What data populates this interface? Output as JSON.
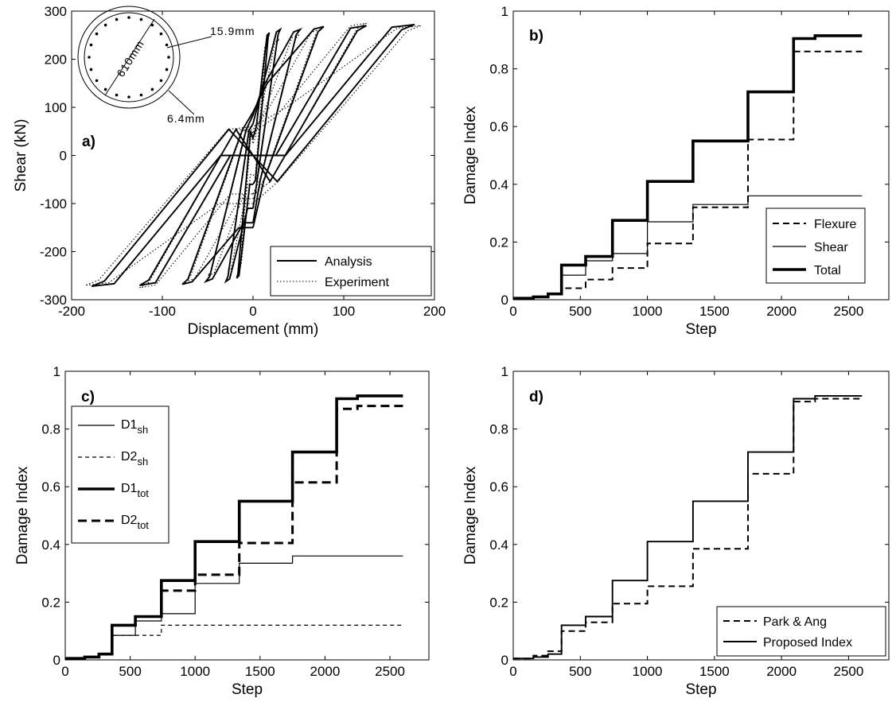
{
  "chart_data": [
    {
      "id": "a",
      "type": "line",
      "panel_label": "a)",
      "xlabel": "Displacement (mm)",
      "ylabel": "Shear (kN)",
      "xlim": [
        -200,
        200
      ],
      "ylim": [
        -300,
        300
      ],
      "xticks": [
        "-200",
        "-100",
        "0",
        "100",
        "200"
      ],
      "yticks": [
        "-300",
        "-200",
        "-100",
        "0",
        "100",
        "200",
        "300"
      ],
      "legend_position": "bottom-right",
      "annotations": {
        "diameter": "610mm",
        "long_bar": "15.9mm",
        "spiral": "6.4mm"
      },
      "series": [
        {
          "name": "Analysis",
          "style": "solid",
          "loops": [
            {
              "amp": 18,
              "vmax": 255,
              "vres": 60
            },
            {
              "amp": 30,
              "vmax": 262,
              "vres": 110
            },
            {
              "amp": 52,
              "vmax": 262,
              "vres": 140
            },
            {
              "amp": 78,
              "vmax": 268,
              "vres": 150
            },
            {
              "amp": 125,
              "vmax": 270,
              "vres": 0
            },
            {
              "amp": 178,
              "vmax": 272,
              "vres": 0
            }
          ]
        },
        {
          "name": "Experiment",
          "style": "dotted",
          "loops": [
            {
              "amp": 15,
              "vmax": 230,
              "vres": 40
            },
            {
              "amp": 28,
              "vmax": 240,
              "vres": 60
            },
            {
              "amp": 50,
              "vmax": 250,
              "vres": 80
            },
            {
              "amp": 75,
              "vmax": 262,
              "vres": 90
            },
            {
              "amp": 125,
              "vmax": 275,
              "vres": 80
            },
            {
              "amp": 185,
              "vmax": 270,
              "vres": 100
            }
          ]
        }
      ]
    },
    {
      "id": "b",
      "type": "line",
      "panel_label": "b)",
      "xlabel": "Step",
      "ylabel": "Damage Index",
      "xlim": [
        0,
        2800
      ],
      "ylim": [
        0,
        1
      ],
      "xticks": [
        "0",
        "500",
        "1000",
        "1500",
        "2000",
        "2500"
      ],
      "yticks": [
        "0",
        "0.2",
        "0.4",
        "0.6",
        "0.8",
        "1"
      ],
      "legend_position": "bottom-right",
      "series": [
        {
          "name": "Flexure",
          "style": "dashed",
          "x": [
            0,
            150,
            260,
            360,
            540,
            740,
            1000,
            1340,
            1750,
            2090,
            2600
          ],
          "y": [
            0.005,
            0.01,
            0.02,
            0.04,
            0.07,
            0.11,
            0.195,
            0.32,
            0.555,
            0.86,
            0.86
          ]
        },
        {
          "name": "Shear",
          "style": "thin",
          "x": [
            0,
            150,
            260,
            360,
            540,
            740,
            1000,
            1340,
            1750,
            2090,
            2600
          ],
          "y": [
            0.005,
            0.01,
            0.02,
            0.085,
            0.135,
            0.16,
            0.27,
            0.33,
            0.36,
            0.36,
            0.36
          ]
        },
        {
          "name": "Total",
          "style": "thick",
          "x": [
            0,
            150,
            260,
            360,
            540,
            740,
            1000,
            1340,
            1750,
            2090,
            2250,
            2600
          ],
          "y": [
            0.005,
            0.01,
            0.02,
            0.12,
            0.15,
            0.275,
            0.41,
            0.55,
            0.72,
            0.905,
            0.915,
            0.915
          ]
        }
      ]
    },
    {
      "id": "c",
      "type": "line",
      "panel_label": "c)",
      "xlabel": "Step",
      "ylabel": "Damage Index",
      "xlim": [
        0,
        2800
      ],
      "ylim": [
        0,
        1
      ],
      "xticks": [
        "0",
        "500",
        "1000",
        "1500",
        "2000",
        "2500"
      ],
      "yticks": [
        "0",
        "0.2",
        "0.4",
        "0.6",
        "0.8",
        "1"
      ],
      "legend_position": "top-left",
      "series": [
        {
          "name": "D1",
          "subscript": "sh",
          "style": "thin",
          "x": [
            0,
            150,
            260,
            360,
            540,
            740,
            1000,
            1340,
            1750,
            2090,
            2600
          ],
          "y": [
            0.005,
            0.01,
            0.02,
            0.085,
            0.135,
            0.16,
            0.265,
            0.335,
            0.36,
            0.36,
            0.36
          ]
        },
        {
          "name": "D2",
          "subscript": "sh",
          "style": "thin-dashed",
          "x": [
            0,
            150,
            260,
            360,
            740,
            2600
          ],
          "y": [
            0.005,
            0.01,
            0.02,
            0.085,
            0.12,
            0.12
          ]
        },
        {
          "name": "D1",
          "subscript": "tot",
          "style": "thick",
          "x": [
            0,
            150,
            260,
            360,
            540,
            740,
            1000,
            1340,
            1750,
            2090,
            2250,
            2600
          ],
          "y": [
            0.005,
            0.01,
            0.02,
            0.12,
            0.15,
            0.275,
            0.41,
            0.55,
            0.72,
            0.905,
            0.915,
            0.915
          ]
        },
        {
          "name": "D2",
          "subscript": "tot",
          "style": "thick-dashed",
          "x": [
            0,
            150,
            260,
            360,
            540,
            740,
            1000,
            1340,
            1750,
            2090,
            2250,
            2600
          ],
          "y": [
            0.005,
            0.01,
            0.02,
            0.12,
            0.15,
            0.24,
            0.295,
            0.405,
            0.615,
            0.87,
            0.88,
            0.88
          ]
        }
      ]
    },
    {
      "id": "d",
      "type": "line",
      "panel_label": "d)",
      "xlabel": "Step",
      "ylabel": "Damage Index",
      "xlim": [
        0,
        2800
      ],
      "ylim": [
        0,
        1
      ],
      "xticks": [
        "0",
        "500",
        "1000",
        "1500",
        "2000",
        "2500"
      ],
      "yticks": [
        "0",
        "0.2",
        "0.4",
        "0.6",
        "0.8",
        "1"
      ],
      "legend_position": "bottom-right",
      "series": [
        {
          "name": "Park & Ang",
          "style": "dashed",
          "x": [
            0,
            150,
            260,
            360,
            540,
            740,
            1000,
            1340,
            1750,
            2090,
            2250,
            2600
          ],
          "y": [
            0.005,
            0.015,
            0.03,
            0.1,
            0.13,
            0.195,
            0.255,
            0.385,
            0.645,
            0.895,
            0.905,
            0.905
          ]
        },
        {
          "name": "Proposed Index",
          "style": "solid",
          "x": [
            0,
            150,
            260,
            360,
            540,
            740,
            1000,
            1340,
            1750,
            2090,
            2250,
            2600
          ],
          "y": [
            0.005,
            0.01,
            0.02,
            0.12,
            0.15,
            0.275,
            0.41,
            0.55,
            0.72,
            0.905,
            0.915,
            0.915
          ]
        }
      ]
    }
  ]
}
